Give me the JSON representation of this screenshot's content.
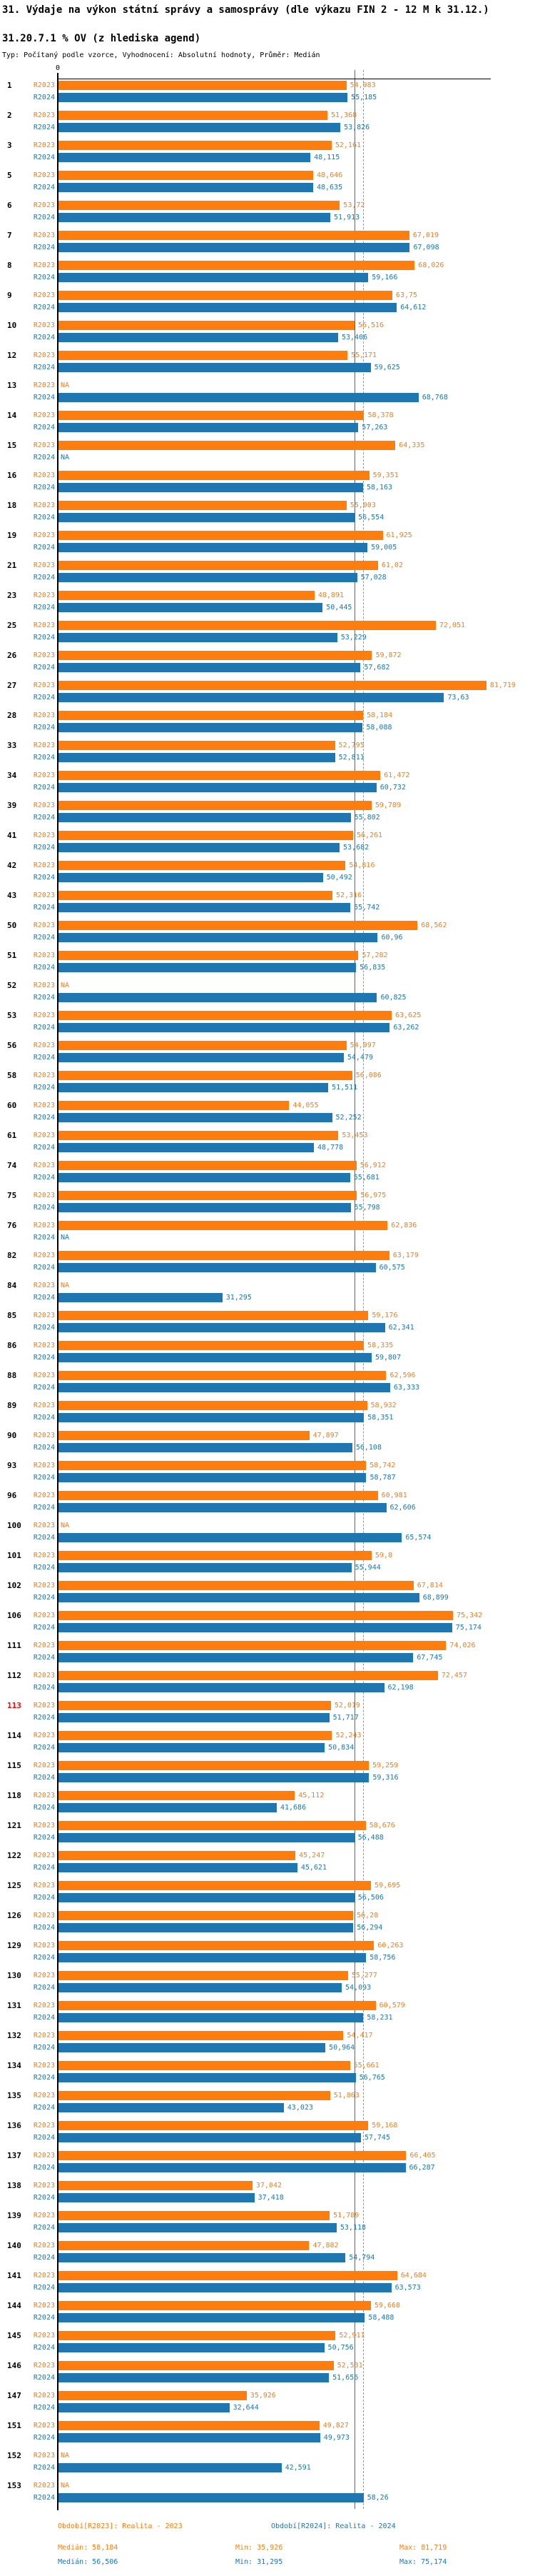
{
  "legend": {
    "r2023_period": "Období[R2023]: Realita - 2023",
    "r2024_period": "Období[R2024]: Realita - 2024",
    "r2023": {
      "median": "Medián: 58,184",
      "min": "Min: 35,926",
      "max": "Max: 81,719"
    },
    "r2024": {
      "median": "Medián: 56,506",
      "min": "Min: 31,295",
      "max": "Max: 75,174"
    }
  },
  "chart_data": {
    "type": "bar",
    "orientation": "horizontal",
    "title": "31. Výdaje na výkon státní správy a samosprávy (dle výkazu FIN 2 - 12 M k 31.12.)",
    "subtitle": "31.20.7.1 % OV (z hlediska agend)",
    "note": "Typ: Počítaný podle vzorce, Vyhodnocení: Absolutní hodnoty, Průměr: Medián",
    "value_format": "decimal-comma, NA = missing",
    "x_axis": {
      "zero_label": "0",
      "min": 0,
      "approx_max": 90,
      "gridlines": false
    },
    "legend_position": "bottom",
    "highlighted_row_id": "113",
    "series": [
      {
        "key": "r2023",
        "label": "R2023",
        "color": "#fd7e0e",
        "period": "Realita - 2023",
        "median": "58,184",
        "min": "35,926",
        "max": "81,719"
      },
      {
        "key": "r2024",
        "label": "R2024",
        "color": "#2076b1",
        "period": "Realita - 2024",
        "median": "56,506",
        "min": "31,295",
        "max": "75,174"
      }
    ],
    "rows": [
      {
        "id": "1",
        "r2023": "54,983",
        "r2024": "55,185"
      },
      {
        "id": "2",
        "r2023": "51,368",
        "r2024": "53,826"
      },
      {
        "id": "3",
        "r2023": "52,161",
        "r2024": "48,115"
      },
      {
        "id": "5",
        "r2023": "48,646",
        "r2024": "48,635"
      },
      {
        "id": "6",
        "r2023": "53,72",
        "r2024": "51,913"
      },
      {
        "id": "7",
        "r2023": "67,019",
        "r2024": "67,098"
      },
      {
        "id": "8",
        "r2023": "68,026",
        "r2024": "59,166"
      },
      {
        "id": "9",
        "r2023": "63,75",
        "r2024": "64,612"
      },
      {
        "id": "10",
        "r2023": "56,516",
        "r2024": "53,406"
      },
      {
        "id": "12",
        "r2023": "55,171",
        "r2024": "59,625"
      },
      {
        "id": "13",
        "r2023": "NA",
        "r2024": "68,768"
      },
      {
        "id": "14",
        "r2023": "58,378",
        "r2024": "57,263"
      },
      {
        "id": "15",
        "r2023": "64,335",
        "r2024": "NA"
      },
      {
        "id": "16",
        "r2023": "59,351",
        "r2024": "58,163"
      },
      {
        "id": "18",
        "r2023": "55,003",
        "r2024": "56,554"
      },
      {
        "id": "19",
        "r2023": "61,925",
        "r2024": "59,005"
      },
      {
        "id": "21",
        "r2023": "61,02",
        "r2024": "57,028"
      },
      {
        "id": "23",
        "r2023": "48,891",
        "r2024": "50,445"
      },
      {
        "id": "25",
        "r2023": "72,051",
        "r2024": "53,229"
      },
      {
        "id": "26",
        "r2023": "59,872",
        "r2024": "57,682"
      },
      {
        "id": "27",
        "r2023": "81,719",
        "r2024": "73,63"
      },
      {
        "id": "28",
        "r2023": "58,184",
        "r2024": "58,088"
      },
      {
        "id": "33",
        "r2023": "52,795",
        "r2024": "52,811"
      },
      {
        "id": "34",
        "r2023": "61,472",
        "r2024": "60,732"
      },
      {
        "id": "39",
        "r2023": "59,789",
        "r2024": "55,802"
      },
      {
        "id": "41",
        "r2023": "56,261",
        "r2024": "53,682"
      },
      {
        "id": "42",
        "r2023": "54,816",
        "r2024": "50,492"
      },
      {
        "id": "43",
        "r2023": "52,316",
        "r2024": "55,742"
      },
      {
        "id": "50",
        "r2023": "68,562",
        "r2024": "60,96"
      },
      {
        "id": "51",
        "r2023": "57,282",
        "r2024": "56,835"
      },
      {
        "id": "52",
        "r2023": "NA",
        "r2024": "60,825"
      },
      {
        "id": "53",
        "r2023": "63,625",
        "r2024": "63,262"
      },
      {
        "id": "56",
        "r2023": "54,997",
        "r2024": "54,479"
      },
      {
        "id": "58",
        "r2023": "56,086",
        "r2024": "51,511"
      },
      {
        "id": "60",
        "r2023": "44,055",
        "r2024": "52,252"
      },
      {
        "id": "61",
        "r2023": "53,453",
        "r2024": "48,778"
      },
      {
        "id": "74",
        "r2023": "56,912",
        "r2024": "55,681"
      },
      {
        "id": "75",
        "r2023": "56,975",
        "r2024": "55,798"
      },
      {
        "id": "76",
        "r2023": "62,836",
        "r2024": "NA"
      },
      {
        "id": "82",
        "r2023": "63,179",
        "r2024": "60,575"
      },
      {
        "id": "84",
        "r2023": "NA",
        "r2024": "31,295"
      },
      {
        "id": "85",
        "r2023": "59,176",
        "r2024": "62,341"
      },
      {
        "id": "86",
        "r2023": "58,335",
        "r2024": "59,807"
      },
      {
        "id": "88",
        "r2023": "62,596",
        "r2024": "63,333"
      },
      {
        "id": "89",
        "r2023": "58,932",
        "r2024": "58,351"
      },
      {
        "id": "90",
        "r2023": "47,897",
        "r2024": "56,108"
      },
      {
        "id": "93",
        "r2023": "58,742",
        "r2024": "58,787"
      },
      {
        "id": "96",
        "r2023": "60,981",
        "r2024": "62,606"
      },
      {
        "id": "100",
        "r2023": "NA",
        "r2024": "65,574"
      },
      {
        "id": "101",
        "r2023": "59,8",
        "r2024": "55,944"
      },
      {
        "id": "102",
        "r2023": "67,814",
        "r2024": "68,899"
      },
      {
        "id": "106",
        "r2023": "75,342",
        "r2024": "75,174"
      },
      {
        "id": "111",
        "r2023": "74,026",
        "r2024": "67,745"
      },
      {
        "id": "112",
        "r2023": "72,457",
        "r2024": "62,198"
      },
      {
        "id": "113",
        "r2023": "52,019",
        "r2024": "51,717"
      },
      {
        "id": "114",
        "r2023": "52,243",
        "r2024": "50,834"
      },
      {
        "id": "115",
        "r2023": "59,259",
        "r2024": "59,316"
      },
      {
        "id": "118",
        "r2023": "45,112",
        "r2024": "41,686"
      },
      {
        "id": "121",
        "r2023": "58,676",
        "r2024": "56,488"
      },
      {
        "id": "122",
        "r2023": "45,247",
        "r2024": "45,621"
      },
      {
        "id": "125",
        "r2023": "59,695",
        "r2024": "56,506"
      },
      {
        "id": "126",
        "r2023": "56,28",
        "r2024": "56,294"
      },
      {
        "id": "129",
        "r2023": "60,263",
        "r2024": "58,756"
      },
      {
        "id": "130",
        "r2023": "55,277",
        "r2024": "54,093"
      },
      {
        "id": "131",
        "r2023": "60,579",
        "r2024": "58,231"
      },
      {
        "id": "132",
        "r2023": "54,417",
        "r2024": "50,964"
      },
      {
        "id": "134",
        "r2023": "55,661",
        "r2024": "56,765"
      },
      {
        "id": "135",
        "r2023": "51,863",
        "r2024": "43,023"
      },
      {
        "id": "136",
        "r2023": "59,168",
        "r2024": "57,745"
      },
      {
        "id": "137",
        "r2023": "66,405",
        "r2024": "66,287"
      },
      {
        "id": "138",
        "r2023": "37,042",
        "r2024": "37,418"
      },
      {
        "id": "139",
        "r2023": "51,789",
        "r2024": "53,118"
      },
      {
        "id": "140",
        "r2023": "47,882",
        "r2024": "54,794"
      },
      {
        "id": "141",
        "r2023": "64,684",
        "r2024": "63,573"
      },
      {
        "id": "144",
        "r2023": "59,668",
        "r2024": "58,488"
      },
      {
        "id": "145",
        "r2023": "52,911",
        "r2024": "50,756"
      },
      {
        "id": "146",
        "r2023": "52,531",
        "r2024": "51,656"
      },
      {
        "id": "147",
        "r2023": "35,926",
        "r2024": "32,644"
      },
      {
        "id": "151",
        "r2023": "49,827",
        "r2024": "49,973"
      },
      {
        "id": "152",
        "r2023": "NA",
        "r2024": "42,591"
      },
      {
        "id": "153",
        "r2023": "NA",
        "r2024": "58,26"
      }
    ]
  }
}
